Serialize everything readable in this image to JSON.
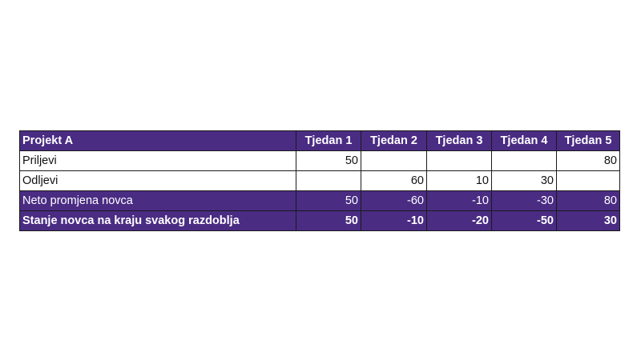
{
  "table": {
    "header": [
      "Projekt A",
      "Tjedan 1",
      "Tjedan 2",
      "Tjedan 3",
      "Tjedan 4",
      "Tjedan 5"
    ],
    "rows": [
      [
        "Priljevi",
        50,
        null,
        null,
        null,
        80
      ],
      [
        "Odljevi",
        null,
        60,
        10,
        30,
        null
      ],
      [
        "Neto promjena novca",
        50,
        -60,
        -10,
        -30,
        80
      ],
      [
        "Stanje novca na kraju svakog razdoblja",
        50,
        -10,
        -20,
        -50,
        30
      ]
    ]
  }
}
